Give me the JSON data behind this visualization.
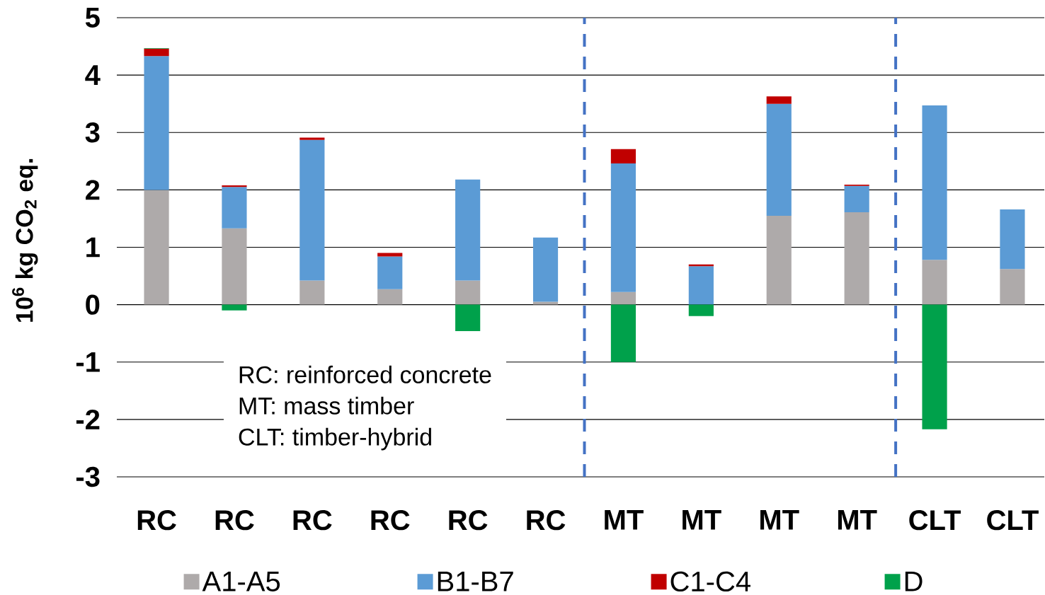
{
  "chart_data": {
    "type": "bar",
    "stacked": true,
    "ylabel": "10$^{6}$ kg CO$_{2}$ eq.",
    "categories": [
      "RC",
      "RC",
      "RC",
      "RC",
      "RC",
      "RC",
      "MT",
      "MT",
      "MT",
      "MT",
      "CLT",
      "CLT"
    ],
    "series": [
      {
        "name": "A1-A5",
        "color": "#aeaaaa",
        "values": [
          2.0,
          1.33,
          0.42,
          0.27,
          0.42,
          0.05,
          0.22,
          0,
          1.55,
          1.61,
          0.78,
          0.62
        ]
      },
      {
        "name": "B1-B7",
        "color": "#5b9bd5",
        "values": [
          2.33,
          0.72,
          2.45,
          0.57,
          1.76,
          1.12,
          2.24,
          0.67,
          1.95,
          0.46,
          2.69,
          1.04
        ]
      },
      {
        "name": "C1-C4",
        "color": "#c00000",
        "values": [
          0.13,
          0.03,
          0.04,
          0.06,
          0,
          0,
          0.25,
          0.03,
          0.13,
          0.02,
          0,
          0
        ]
      },
      {
        "name": "D",
        "color": "#00a14b",
        "values": [
          0.01,
          -0.1,
          0,
          0,
          -0.46,
          0,
          -1.0,
          -0.2,
          0,
          0,
          -2.17,
          0
        ]
      }
    ],
    "ylim": [
      -3,
      5
    ],
    "yticks": [
      -3,
      -2,
      -1,
      0,
      1,
      2,
      3,
      4,
      5
    ],
    "grid": "y",
    "legend": "bottom",
    "annotations": [
      "RC: reinforced concrete",
      "MT: mass timber",
      "CLT: timber-hybrid"
    ]
  }
}
